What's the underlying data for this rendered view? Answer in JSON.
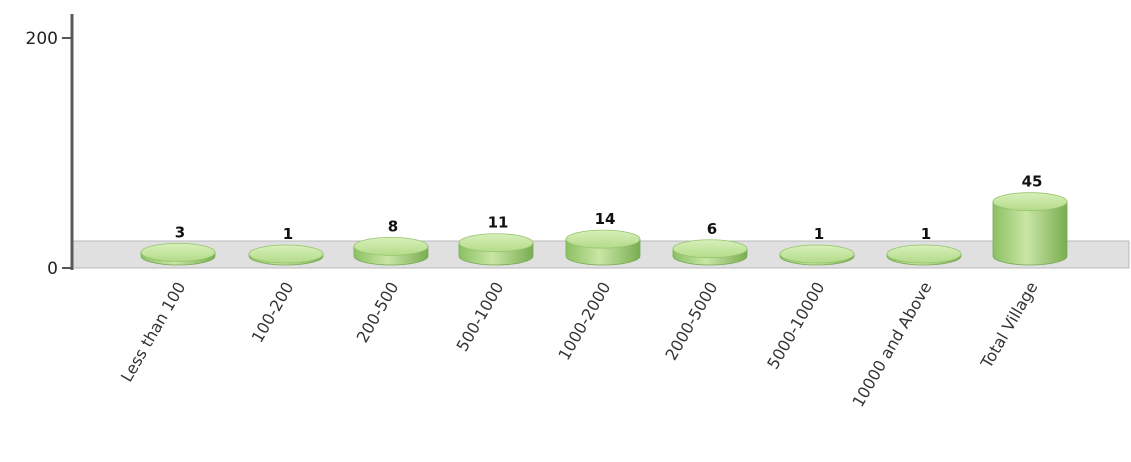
{
  "chart_data": {
    "type": "bar",
    "categories": [
      "Less than 100",
      "100-200",
      "200-500",
      "500-1000",
      "1000-2000",
      "2000-5000",
      "5000-10000",
      "10000 and Above",
      "Total Village"
    ],
    "values": [
      3,
      1,
      8,
      11,
      14,
      6,
      1,
      1,
      45
    ],
    "value_labels": [
      "3",
      "1",
      "8",
      "11",
      "14",
      "6",
      "1",
      "1",
      "45"
    ],
    "y_ticks": [
      "0",
      "200"
    ],
    "ylim": [
      0,
      200
    ],
    "grid": false,
    "legend": "none",
    "title": "",
    "xlabel": "",
    "ylabel": "",
    "colors": {
      "bar_top": "#bfe29a",
      "bar_side_light": "#c9e6a4",
      "bar_side_dark": "#7fb557",
      "floor": "#e0e0e0",
      "axis": "#666666"
    }
  }
}
